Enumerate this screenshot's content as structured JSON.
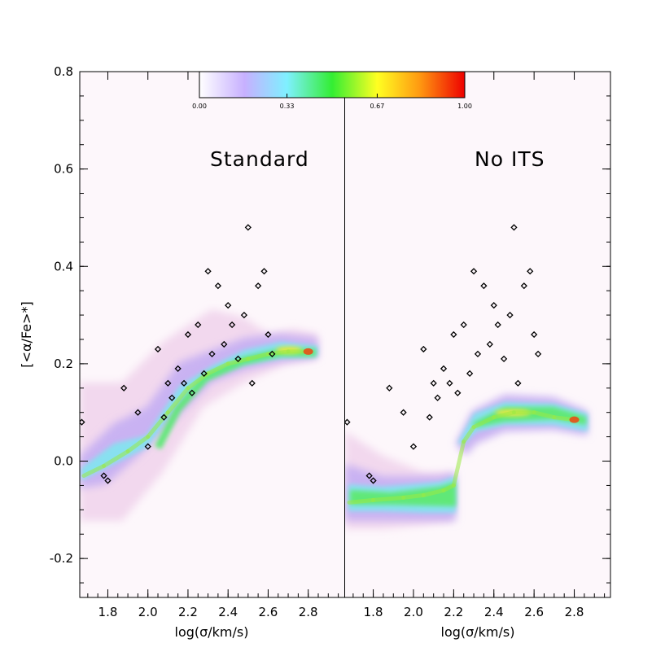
{
  "chart_data": {
    "type": "scatter",
    "colorbar": {
      "ticks": [
        "0.00",
        "0.33",
        "0.67",
        "1.00"
      ],
      "colors": [
        "#ffffff",
        "#c7b0ff",
        "#7ff0ff",
        "#33ee33",
        "#ffff22",
        "#ff9911",
        "#ee0000"
      ]
    },
    "y_axis": {
      "label": "[<α/Fe>*]",
      "range": [
        -0.28,
        0.8
      ],
      "ticks": [
        "-0.2",
        "0.0",
        "0.2",
        "0.4",
        "0.6",
        "0.8"
      ]
    },
    "panels": [
      {
        "title": "Standard",
        "xlabel": "log(σ/km/s)",
        "xlim": [
          1.66,
          2.98
        ],
        "xticks": [
          "1.8",
          "2.0",
          "2.2",
          "2.4",
          "2.6",
          "2.8"
        ],
        "density_ridge": [
          [
            1.68,
            -0.03
          ],
          [
            1.78,
            -0.01
          ],
          [
            1.9,
            0.02
          ],
          [
            2.0,
            0.05
          ],
          [
            2.1,
            0.1
          ],
          [
            2.2,
            0.15
          ],
          [
            2.3,
            0.18
          ],
          [
            2.4,
            0.2
          ],
          [
            2.5,
            0.21
          ],
          [
            2.6,
            0.22
          ],
          [
            2.7,
            0.225
          ],
          [
            2.8,
            0.225
          ]
        ],
        "observations": [
          [
            1.67,
            0.08
          ],
          [
            1.78,
            -0.03
          ],
          [
            1.8,
            -0.04
          ],
          [
            1.88,
            0.15
          ],
          [
            1.95,
            0.1
          ],
          [
            2.0,
            0.03
          ],
          [
            2.05,
            0.23
          ],
          [
            2.08,
            0.09
          ],
          [
            2.1,
            0.16
          ],
          [
            2.12,
            0.13
          ],
          [
            2.15,
            0.19
          ],
          [
            2.18,
            0.16
          ],
          [
            2.2,
            0.26
          ],
          [
            2.22,
            0.14
          ],
          [
            2.25,
            0.28
          ],
          [
            2.28,
            0.18
          ],
          [
            2.3,
            0.39
          ],
          [
            2.32,
            0.22
          ],
          [
            2.35,
            0.36
          ],
          [
            2.38,
            0.24
          ],
          [
            2.4,
            0.32
          ],
          [
            2.42,
            0.28
          ],
          [
            2.45,
            0.21
          ],
          [
            2.48,
            0.3
          ],
          [
            2.5,
            0.48
          ],
          [
            2.52,
            0.16
          ],
          [
            2.55,
            0.36
          ],
          [
            2.58,
            0.39
          ],
          [
            2.6,
            0.26
          ],
          [
            2.62,
            0.22
          ]
        ]
      },
      {
        "title": "No ITS",
        "xlabel": "log(σ/km/s)",
        "xlim": [
          1.66,
          2.98
        ],
        "xticks": [
          "1.8",
          "2.0",
          "2.2",
          "2.4",
          "2.6",
          "2.8"
        ],
        "density_ridge": [
          [
            1.68,
            -0.085
          ],
          [
            1.8,
            -0.08
          ],
          [
            1.95,
            -0.075
          ],
          [
            2.05,
            -0.07
          ],
          [
            2.15,
            -0.06
          ],
          [
            2.2,
            -0.05
          ],
          [
            2.25,
            0.04
          ],
          [
            2.3,
            0.07
          ],
          [
            2.4,
            0.09
          ],
          [
            2.5,
            0.1
          ],
          [
            2.6,
            0.1
          ],
          [
            2.7,
            0.09
          ],
          [
            2.8,
            0.085
          ]
        ],
        "observations": [
          [
            1.67,
            0.08
          ],
          [
            1.78,
            -0.03
          ],
          [
            1.8,
            -0.04
          ],
          [
            1.88,
            0.15
          ],
          [
            1.95,
            0.1
          ],
          [
            2.0,
            0.03
          ],
          [
            2.05,
            0.23
          ],
          [
            2.08,
            0.09
          ],
          [
            2.1,
            0.16
          ],
          [
            2.12,
            0.13
          ],
          [
            2.15,
            0.19
          ],
          [
            2.18,
            0.16
          ],
          [
            2.2,
            0.26
          ],
          [
            2.22,
            0.14
          ],
          [
            2.25,
            0.28
          ],
          [
            2.28,
            0.18
          ],
          [
            2.3,
            0.39
          ],
          [
            2.32,
            0.22
          ],
          [
            2.35,
            0.36
          ],
          [
            2.38,
            0.24
          ],
          [
            2.4,
            0.32
          ],
          [
            2.42,
            0.28
          ],
          [
            2.45,
            0.21
          ],
          [
            2.48,
            0.3
          ],
          [
            2.5,
            0.48
          ],
          [
            2.52,
            0.16
          ],
          [
            2.55,
            0.36
          ],
          [
            2.58,
            0.39
          ],
          [
            2.6,
            0.26
          ],
          [
            2.62,
            0.22
          ]
        ]
      }
    ]
  }
}
